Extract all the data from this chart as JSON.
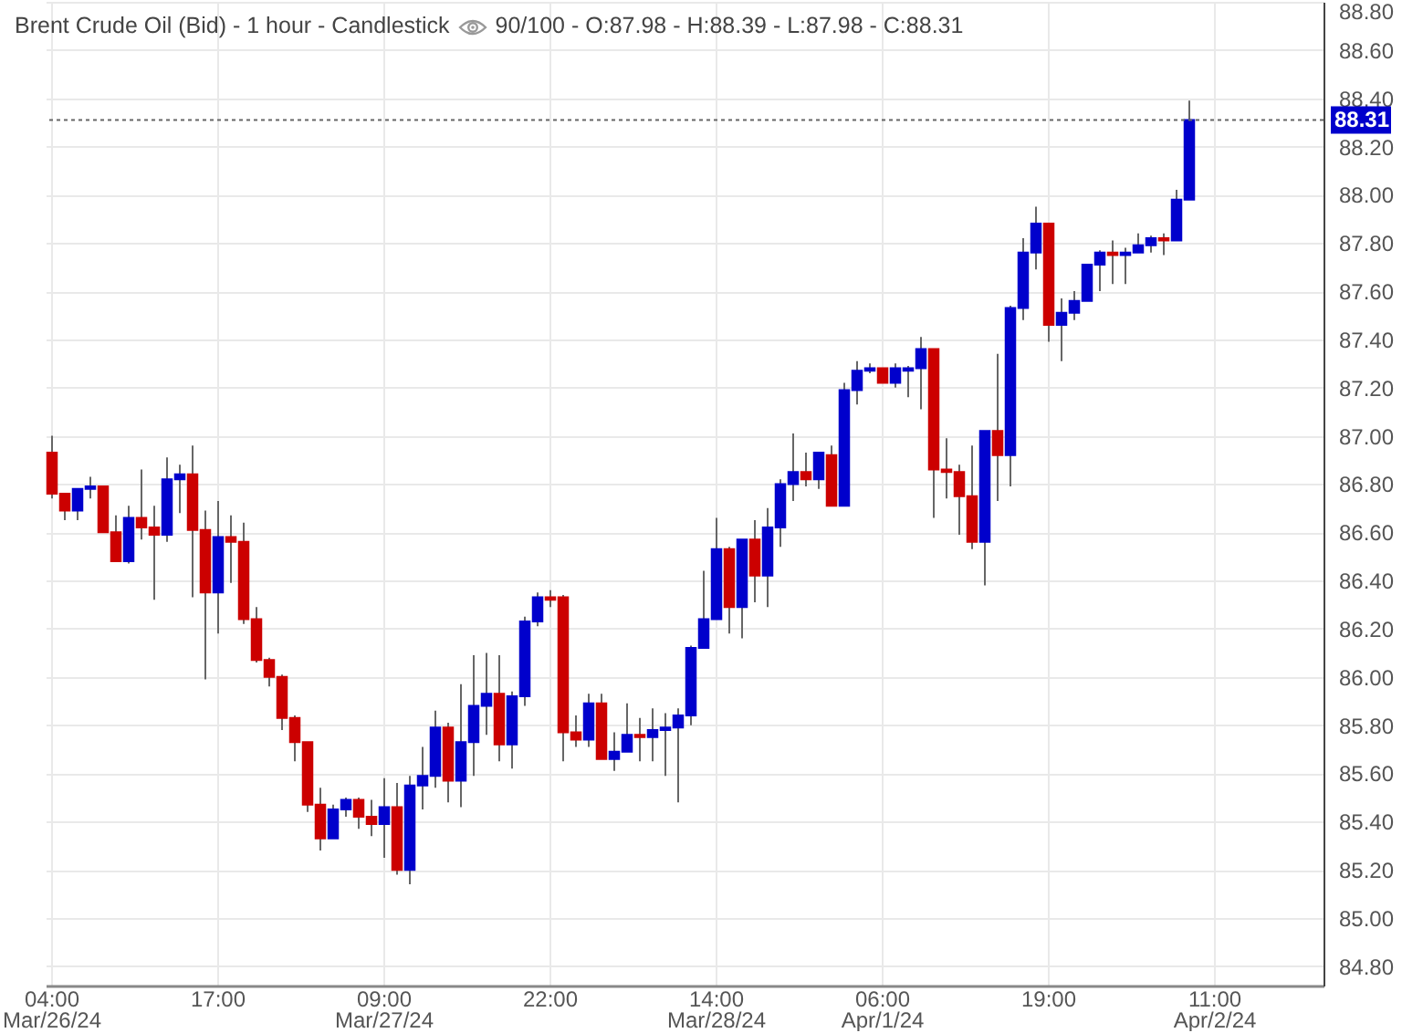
{
  "chart_data": {
    "type": "candlestick",
    "title": "Brent Crude Oil (Bid) - 1 hour - Candlestick",
    "subtitle": "90/100 - O:87.98 - H:88.39 - L:87.98 - C:88.31",
    "categories": [
      "04:00\nMar/26/24",
      null,
      null,
      null,
      null,
      null,
      null,
      null,
      null,
      null,
      null,
      null,
      null,
      "17:00",
      null,
      null,
      null,
      null,
      null,
      null,
      null,
      null,
      null,
      null,
      null,
      null,
      "09:00\nMar/27/24",
      null,
      null,
      null,
      null,
      null,
      null,
      null,
      null,
      null,
      null,
      null,
      null,
      "22:00",
      null,
      null,
      null,
      null,
      null,
      null,
      null,
      null,
      null,
      null,
      null,
      null,
      "14:00\nMar/28/24",
      null,
      null,
      null,
      null,
      null,
      null,
      null,
      null,
      null,
      null,
      null,
      null,
      "06:00\nApr/1/24",
      null,
      null,
      null,
      null,
      null,
      null,
      null,
      null,
      null,
      null,
      null,
      null,
      "19:00",
      null,
      null,
      null,
      null,
      null,
      null,
      null,
      null,
      null,
      null,
      null,
      null,
      "11:00\nApr/2/24",
      null,
      null,
      null,
      null,
      null,
      null,
      null,
      null
    ],
    "ohlc": [
      [
        86.93,
        87.0,
        86.74,
        86.76
      ],
      [
        86.76,
        86.76,
        86.65,
        86.69
      ],
      [
        86.69,
        86.78,
        86.65,
        86.78
      ],
      [
        86.78,
        86.83,
        86.74,
        86.79
      ],
      [
        86.79,
        86.79,
        86.6,
        86.6
      ],
      [
        86.6,
        86.67,
        86.48,
        86.48
      ],
      [
        86.48,
        86.71,
        86.47,
        86.66
      ],
      [
        86.66,
        86.86,
        86.57,
        86.62
      ],
      [
        86.62,
        86.71,
        86.32,
        86.59
      ],
      [
        86.59,
        86.91,
        86.56,
        86.82
      ],
      [
        86.82,
        86.88,
        86.68,
        86.84
      ],
      [
        86.84,
        86.96,
        86.33,
        86.61
      ],
      [
        86.61,
        86.69,
        85.99,
        86.35
      ],
      [
        86.35,
        86.73,
        86.18,
        86.58
      ],
      [
        86.58,
        86.67,
        86.39,
        86.56
      ],
      [
        86.56,
        86.64,
        86.22,
        86.24
      ],
      [
        86.24,
        86.29,
        86.06,
        86.07
      ],
      [
        86.07,
        86.08,
        85.96,
        86.0
      ],
      [
        86.0,
        86.01,
        85.78,
        85.83
      ],
      [
        85.83,
        85.84,
        85.65,
        85.73
      ],
      [
        85.73,
        85.73,
        85.44,
        85.47
      ],
      [
        85.47,
        85.54,
        85.28,
        85.33
      ],
      [
        85.33,
        85.47,
        85.33,
        85.45
      ],
      [
        85.45,
        85.5,
        85.42,
        85.49
      ],
      [
        85.49,
        85.5,
        85.37,
        85.42
      ],
      [
        85.42,
        85.49,
        85.34,
        85.39
      ],
      [
        85.39,
        85.58,
        85.25,
        85.46
      ],
      [
        85.46,
        85.56,
        85.18,
        85.2
      ],
      [
        85.2,
        85.59,
        85.14,
        85.55
      ],
      [
        85.55,
        85.71,
        85.45,
        85.59
      ],
      [
        85.59,
        85.86,
        85.54,
        85.79
      ],
      [
        85.79,
        85.81,
        85.48,
        85.57
      ],
      [
        85.57,
        85.97,
        85.46,
        85.73
      ],
      [
        85.73,
        86.09,
        85.59,
        85.88
      ],
      [
        85.88,
        86.1,
        85.76,
        85.93
      ],
      [
        85.93,
        86.09,
        85.65,
        85.72
      ],
      [
        85.72,
        85.94,
        85.62,
        85.92
      ],
      [
        85.92,
        86.25,
        85.88,
        86.23
      ],
      [
        86.23,
        86.35,
        86.21,
        86.33
      ],
      [
        86.33,
        86.36,
        86.29,
        86.32
      ],
      [
        86.33,
        86.34,
        85.65,
        85.77
      ],
      [
        85.77,
        85.84,
        85.71,
        85.74
      ],
      [
        85.74,
        85.93,
        85.71,
        85.89
      ],
      [
        85.89,
        85.93,
        85.66,
        85.66
      ],
      [
        85.66,
        85.77,
        85.61,
        85.69
      ],
      [
        85.69,
        85.89,
        85.69,
        85.76
      ],
      [
        85.76,
        85.83,
        85.65,
        85.75
      ],
      [
        85.75,
        85.87,
        85.65,
        85.78
      ],
      [
        85.78,
        85.85,
        85.59,
        85.79
      ],
      [
        85.79,
        85.87,
        85.48,
        85.84
      ],
      [
        85.84,
        86.13,
        85.8,
        86.12
      ],
      [
        86.12,
        86.44,
        86.12,
        86.24
      ],
      [
        86.24,
        86.66,
        86.24,
        86.53
      ],
      [
        86.53,
        86.54,
        86.18,
        86.29
      ],
      [
        86.29,
        86.57,
        86.16,
        86.57
      ],
      [
        86.57,
        86.65,
        86.31,
        86.42
      ],
      [
        86.42,
        86.7,
        86.29,
        86.62
      ],
      [
        86.62,
        86.82,
        86.54,
        86.8
      ],
      [
        86.8,
        87.01,
        86.73,
        86.85
      ],
      [
        86.85,
        86.93,
        86.79,
        86.82
      ],
      [
        86.82,
        86.93,
        86.78,
        86.93
      ],
      [
        86.92,
        86.96,
        86.71,
        86.71
      ],
      [
        86.71,
        87.22,
        86.71,
        87.19
      ],
      [
        87.19,
        87.31,
        87.13,
        87.27
      ],
      [
        87.27,
        87.3,
        87.26,
        87.28
      ],
      [
        87.28,
        87.28,
        87.22,
        87.22
      ],
      [
        87.22,
        87.3,
        87.2,
        87.28
      ],
      [
        87.27,
        87.29,
        87.16,
        87.28
      ],
      [
        87.28,
        87.41,
        87.11,
        87.36
      ],
      [
        87.36,
        87.36,
        86.66,
        86.86
      ],
      [
        86.86,
        86.99,
        86.74,
        86.85
      ],
      [
        86.85,
        86.88,
        86.59,
        86.75
      ],
      [
        86.75,
        86.96,
        86.53,
        86.56
      ],
      [
        86.56,
        87.02,
        86.38,
        87.02
      ],
      [
        87.02,
        87.34,
        86.73,
        86.92
      ],
      [
        86.92,
        87.54,
        86.79,
        87.53
      ],
      [
        87.53,
        87.82,
        87.48,
        87.76
      ],
      [
        87.76,
        87.95,
        87.69,
        87.88
      ],
      [
        87.88,
        87.88,
        87.39,
        87.46
      ],
      [
        87.46,
        87.57,
        87.31,
        87.51
      ],
      [
        87.51,
        87.6,
        87.48,
        87.56
      ],
      [
        87.56,
        87.71,
        87.56,
        87.71
      ],
      [
        87.71,
        87.77,
        87.6,
        87.76
      ],
      [
        87.76,
        87.81,
        87.63,
        87.75
      ],
      [
        87.75,
        87.78,
        87.63,
        87.76
      ],
      [
        87.76,
        87.84,
        87.76,
        87.79
      ],
      [
        87.79,
        87.83,
        87.76,
        87.82
      ],
      [
        87.82,
        87.84,
        87.75,
        87.81
      ],
      [
        87.81,
        88.02,
        87.81,
        87.98
      ],
      [
        87.98,
        88.39,
        87.98,
        88.31
      ],
      null,
      null,
      null,
      null,
      null,
      null,
      null,
      null,
      null,
      null
    ],
    "colors": [
      "#cc0000",
      "#cc0000",
      "#0000cc",
      "#0000cc",
      "#cc0000",
      "#cc0000",
      "#0000cc",
      "#cc0000",
      "#cc0000",
      "#0000cc",
      "#0000cc",
      "#cc0000",
      "#cc0000",
      "#0000cc",
      "#cc0000",
      "#cc0000",
      "#cc0000",
      "#cc0000",
      "#cc0000",
      "#cc0000",
      "#cc0000",
      "#cc0000",
      "#0000cc",
      "#0000cc",
      "#cc0000",
      "#cc0000",
      "#0000cc",
      "#cc0000",
      "#0000cc",
      "#0000cc",
      "#0000cc",
      "#cc0000",
      "#0000cc",
      "#0000cc",
      "#0000cc",
      "#cc0000",
      "#0000cc",
      "#0000cc",
      "#0000cc",
      "#cc0000",
      "#cc0000",
      "#cc0000",
      "#0000cc",
      "#cc0000",
      "#0000cc",
      "#0000cc",
      "#cc0000",
      "#0000cc",
      "#0000cc",
      "#0000cc",
      "#0000cc",
      "#0000cc",
      "#0000cc",
      "#cc0000",
      "#0000cc",
      "#cc0000",
      "#0000cc",
      "#0000cc",
      "#0000cc",
      "#cc0000",
      "#0000cc",
      "#cc0000",
      "#0000cc",
      "#0000cc",
      "#0000cc",
      "#cc0000",
      "#0000cc",
      "#0000cc",
      "#0000cc",
      "#cc0000",
      "#cc0000",
      "#cc0000",
      "#cc0000",
      "#0000cc",
      "#cc0000",
      "#0000cc",
      "#0000cc",
      "#0000cc",
      "#cc0000",
      "#0000cc",
      "#0000cc",
      "#0000cc",
      "#0000cc",
      "#cc0000",
      "#0000cc",
      "#0000cc",
      "#0000cc",
      "#cc0000",
      "#0000cc",
      "#0000cc",
      null,
      null,
      null,
      null,
      null,
      null,
      null,
      null,
      null,
      null
    ],
    "ylim": [
      84.72,
      88.8
    ],
    "yticks": [
      {
        "value": 84.8,
        "label": "84.80"
      },
      {
        "value": 85.0,
        "label": "85.00"
      },
      {
        "value": 85.2,
        "label": "85.20"
      },
      {
        "value": 85.4,
        "label": "85.40"
      },
      {
        "value": 85.6,
        "label": "85.60"
      },
      {
        "value": 85.8,
        "label": "85.80"
      },
      {
        "value": 86.0,
        "label": "86.00"
      },
      {
        "value": 86.2,
        "label": "86.20"
      },
      {
        "value": 86.4,
        "label": "86.40"
      },
      {
        "value": 86.6,
        "label": "86.60"
      },
      {
        "value": 86.8,
        "label": "86.80"
      },
      {
        "value": 87.0,
        "label": "87.00"
      },
      {
        "value": 87.2,
        "label": "87.20"
      },
      {
        "value": 87.4,
        "label": "87.40"
      },
      {
        "value": 87.6,
        "label": "87.60"
      },
      {
        "value": 87.8,
        "label": "87.80"
      },
      {
        "value": 88.0,
        "label": "88.00"
      },
      {
        "value": 88.2,
        "label": "88.20"
      },
      {
        "value": 88.4,
        "label": "88.40"
      },
      {
        "value": 88.6,
        "label": "88.60"
      },
      {
        "value": 88.8,
        "label": "88.80"
      }
    ],
    "grid": true,
    "ref_lines": [
      {
        "axis": "y",
        "value": 88.31,
        "label": "88.31",
        "color": "#666666",
        "line_style": "dotted"
      }
    ]
  }
}
